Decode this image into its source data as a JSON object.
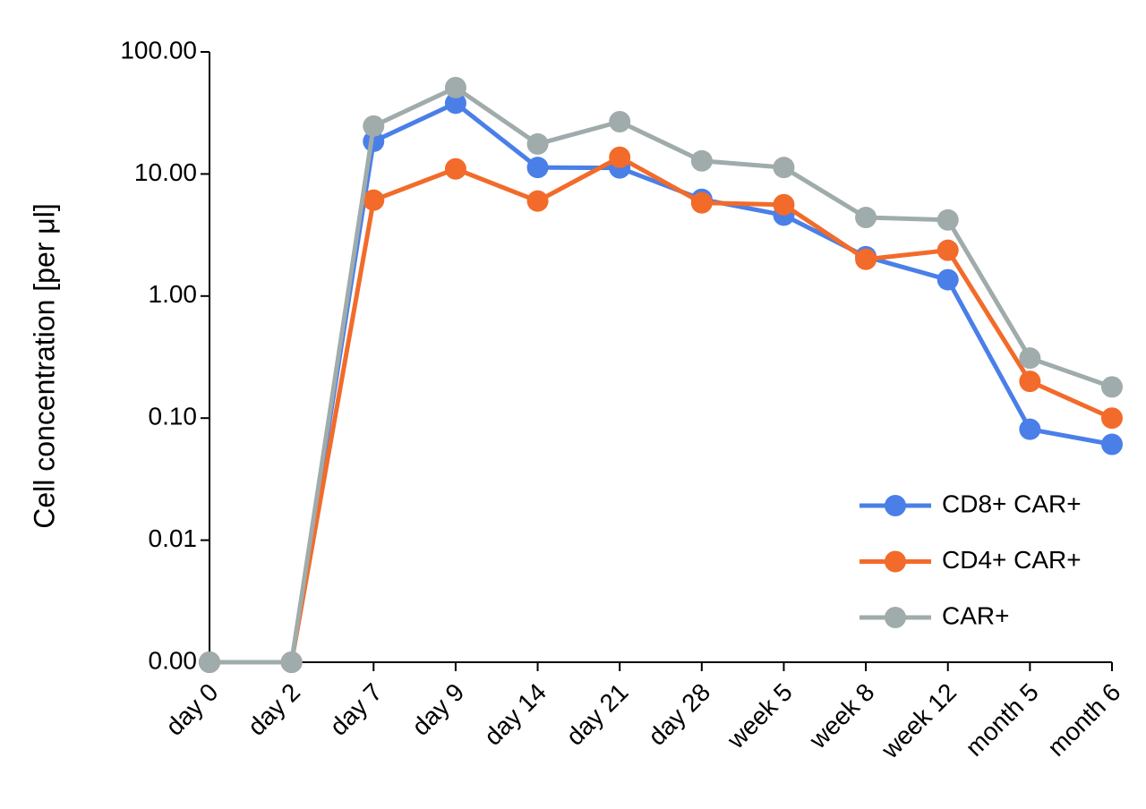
{
  "chart_data": {
    "type": "line",
    "y_label": "Cell concentration [per μl]",
    "categories": [
      "day 0",
      "day 2",
      "day 7",
      "day 9",
      "day 14",
      "day 21",
      "day 28",
      "week 5",
      "week  8",
      "week  12",
      "month 5",
      "month 6"
    ],
    "series": [
      {
        "name": "CD8+ CAR+",
        "color": "#4a7fe8",
        "values": [
          0.001,
          0.001,
          18.5,
          38,
          11.3,
          11.2,
          6.2,
          4.6,
          2.1,
          1.36,
          0.081,
          0.061
        ]
      },
      {
        "name": "CD4+ CAR+",
        "color": "#f26b2a",
        "values": [
          0.001,
          0.001,
          6.1,
          11,
          6,
          13.7,
          5.8,
          5.6,
          2.0,
          2.37,
          0.2,
          0.1
        ]
      },
      {
        "name": "CAR+",
        "color": "#a0abab",
        "values": [
          0.001,
          0.001,
          24.7,
          51,
          17.6,
          26.8,
          12.8,
          11.3,
          4.4,
          4.2,
          0.31,
          0.18
        ]
      }
    ],
    "log_y": true,
    "ylim": [
      0.001,
      100
    ],
    "yticks": [
      {
        "value": 0.001,
        "label": "0.00"
      },
      {
        "value": 0.01,
        "label": "0.01"
      },
      {
        "value": 0.1,
        "label": "0.10"
      },
      {
        "value": 1,
        "label": "1.00"
      },
      {
        "value": 10,
        "label": "10.00"
      },
      {
        "value": 100,
        "label": "100.00"
      }
    ],
    "legend": "lower right"
  }
}
